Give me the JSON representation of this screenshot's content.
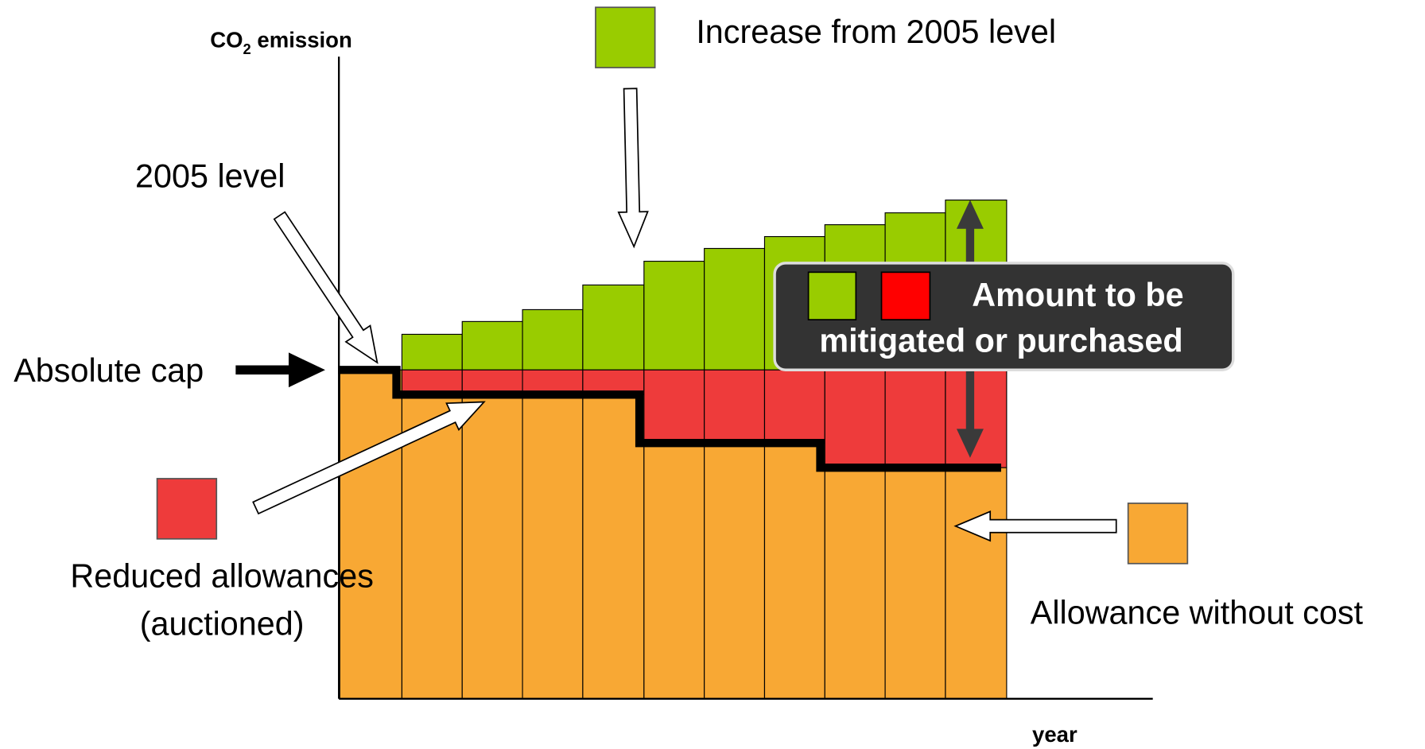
{
  "y_axis_label": {
    "prefix": "CO",
    "subscript": "2",
    "suffix": " emission"
  },
  "x_axis_label": "year",
  "legend": {
    "increase": "Increase from 2005 level",
    "reduced": {
      "line1": "Reduced allowances",
      "line2": "(auctioned)"
    },
    "free": "Allowance without cost"
  },
  "annotations": {
    "level_2005": "2005 level",
    "absolute_cap": "Absolute cap"
  },
  "callout": {
    "line1": "Amount to be",
    "line2": "mitigated or purchased"
  }
}
